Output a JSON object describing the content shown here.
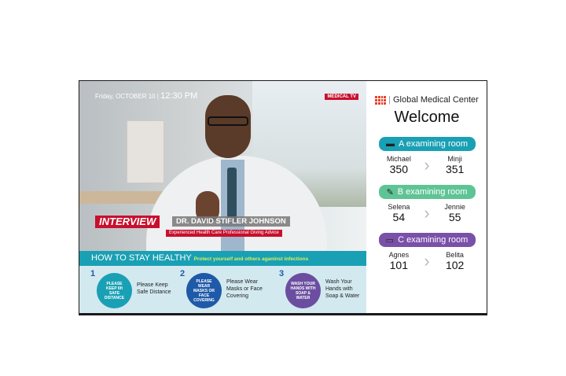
{
  "video": {
    "date": "Friday, OCTOBER 10 |",
    "time": "12:30 PM",
    "channel": "MEDICAL TV",
    "tag": "INTERVIEW",
    "guest_name": "DR. DAVID STIFLER JOHNSON",
    "guest_title": "Experienced Health Care Professional Giving Advice"
  },
  "health": {
    "title": "HOW TO STAY HEALTHY",
    "subtitle": "Protect yourself and others aganinst infections",
    "tips": [
      {
        "num": "1",
        "badge": "PLEASE KEEP 6ft SAFE DISTANCE",
        "text": "Please Keep Safe Distance",
        "color": "#1aa0b4"
      },
      {
        "num": "2",
        "badge": "PLEASE WEAR MASKS OR FACE COVERING",
        "text": "Please Wear Masks or Face Covering",
        "color": "#1f5aa8"
      },
      {
        "num": "3",
        "badge": "WASH YOUR HANDS WITH SOAP & WATER",
        "text": "Wash Your Hands with Soap & Water",
        "color": "#6b4ea0"
      }
    ]
  },
  "side": {
    "brand": "Global Medical Center",
    "welcome": "Welcome",
    "rooms": [
      {
        "label": "A examining room",
        "icon": "chat-icon",
        "color": "#1aa0b4",
        "current_name": "Michael",
        "current_num": "350",
        "next_name": "Minji",
        "next_num": "351"
      },
      {
        "label": "B examining room",
        "icon": "syringe-icon",
        "color": "#5fc495",
        "current_name": "Selena",
        "current_num": "54",
        "next_name": "Jennie",
        "next_num": "55"
      },
      {
        "label": "C examining room",
        "icon": "laptop-icon",
        "color": "#7a50a8",
        "current_name": "Agnes",
        "current_num": "101",
        "next_name": "Belita",
        "next_num": "102"
      }
    ]
  }
}
